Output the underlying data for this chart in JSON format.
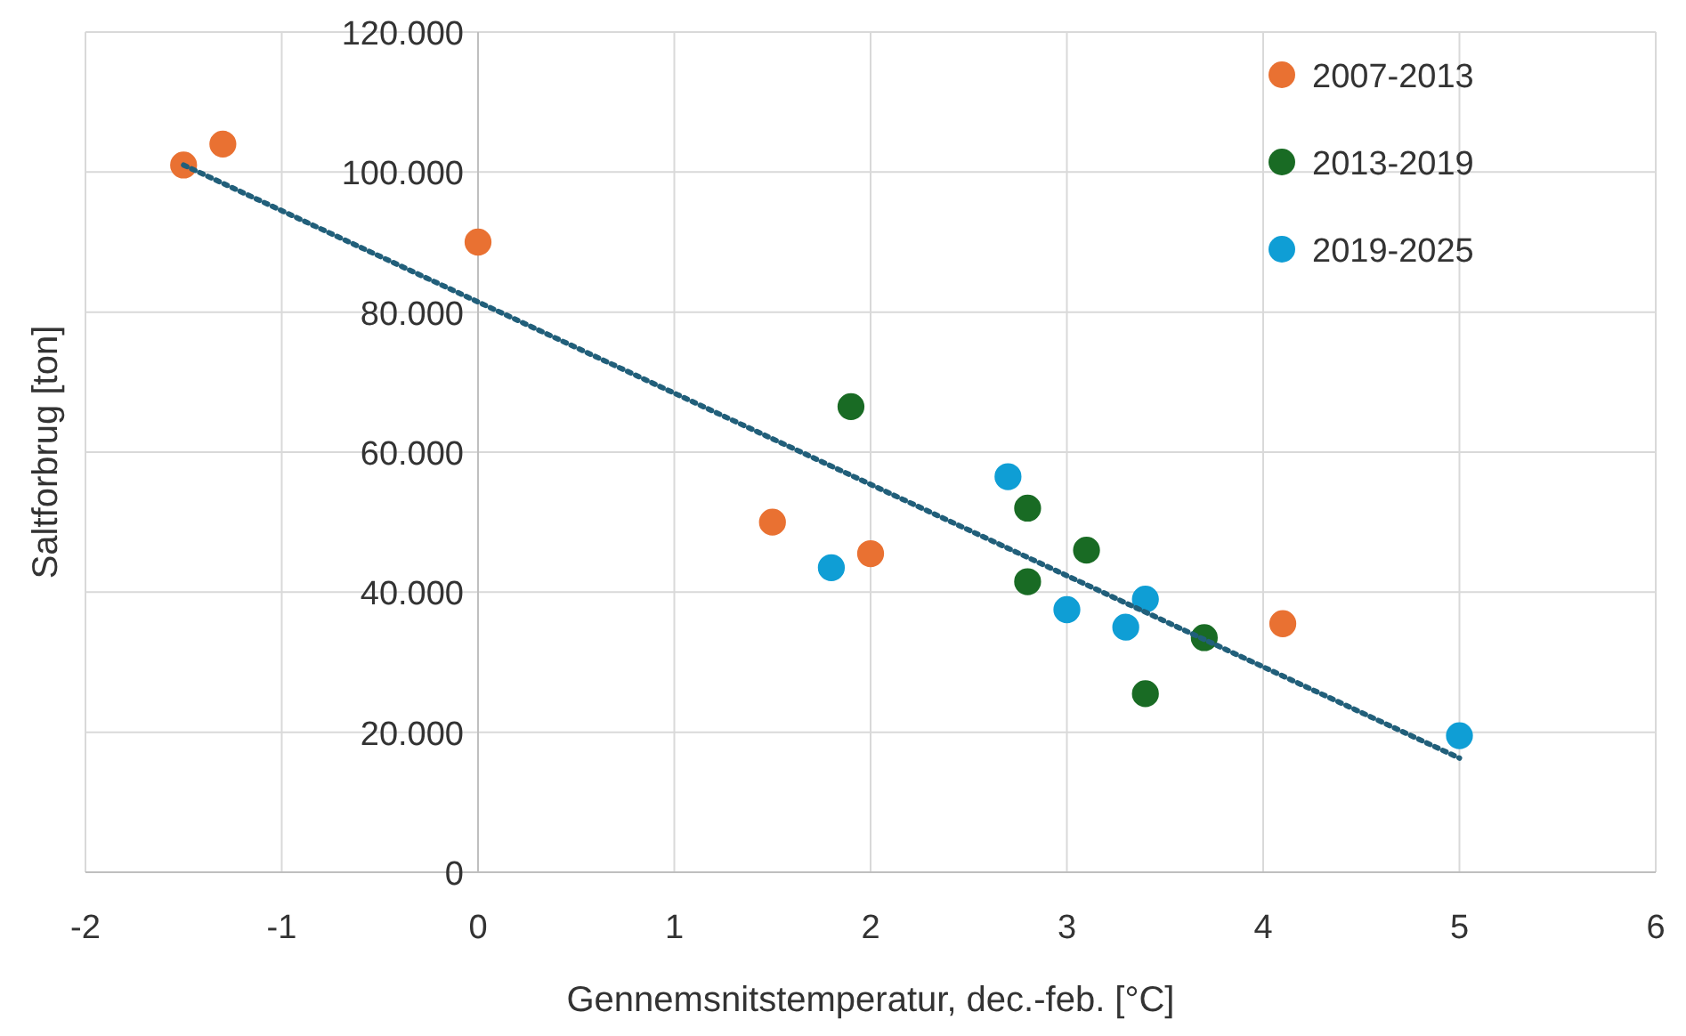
{
  "chart_data": {
    "type": "scatter",
    "xlabel": "Gennemsnitstemperatur, dec.-feb. [°C]",
    "ylabel": "Saltforbrug [ton]",
    "xlim": [
      -2,
      6
    ],
    "xticks": [
      -2,
      -1,
      0,
      1,
      2,
      3,
      4,
      5,
      6
    ],
    "ylim": [
      0,
      120000
    ],
    "yticks": [
      {
        "value": 0,
        "label": "0"
      },
      {
        "value": 20000,
        "label": "20.000"
      },
      {
        "value": 40000,
        "label": "40.000"
      },
      {
        "value": 60000,
        "label": "60.000"
      },
      {
        "value": 80000,
        "label": "80.000"
      },
      {
        "value": 100000,
        "label": "100.000"
      },
      {
        "value": 120000,
        "label": "120.000"
      }
    ],
    "grid": true,
    "legend": "top right",
    "marker": "circle",
    "series": [
      {
        "name": "2007-2013",
        "color": "#e97132",
        "x": [
          -1.5,
          -1.3,
          0,
          1.5,
          2,
          4.1
        ],
        "values": [
          101000,
          104000,
          90000,
          50000,
          45500,
          35500
        ]
      },
      {
        "name": "2013-2019",
        "color": "#196b24",
        "x": [
          1.9,
          2.8,
          3.1,
          2.8,
          3.7,
          3.4
        ],
        "values": [
          66500,
          52000,
          46000,
          41500,
          33500,
          25500
        ]
      },
      {
        "name": "2019-2025",
        "color": "#0f9ed5",
        "x": [
          2.7,
          1.8,
          3.0,
          3.4,
          3.3,
          5.0
        ],
        "values": [
          56500,
          43500,
          37500,
          39000,
          35000,
          19500
        ]
      },
      {
        "type": "line",
        "color": "#215f7a",
        "line_style": "dotted",
        "marker": "none",
        "x": [
          -1.5,
          5
        ],
        "values": [
          101000,
          16300
        ]
      }
    ]
  }
}
